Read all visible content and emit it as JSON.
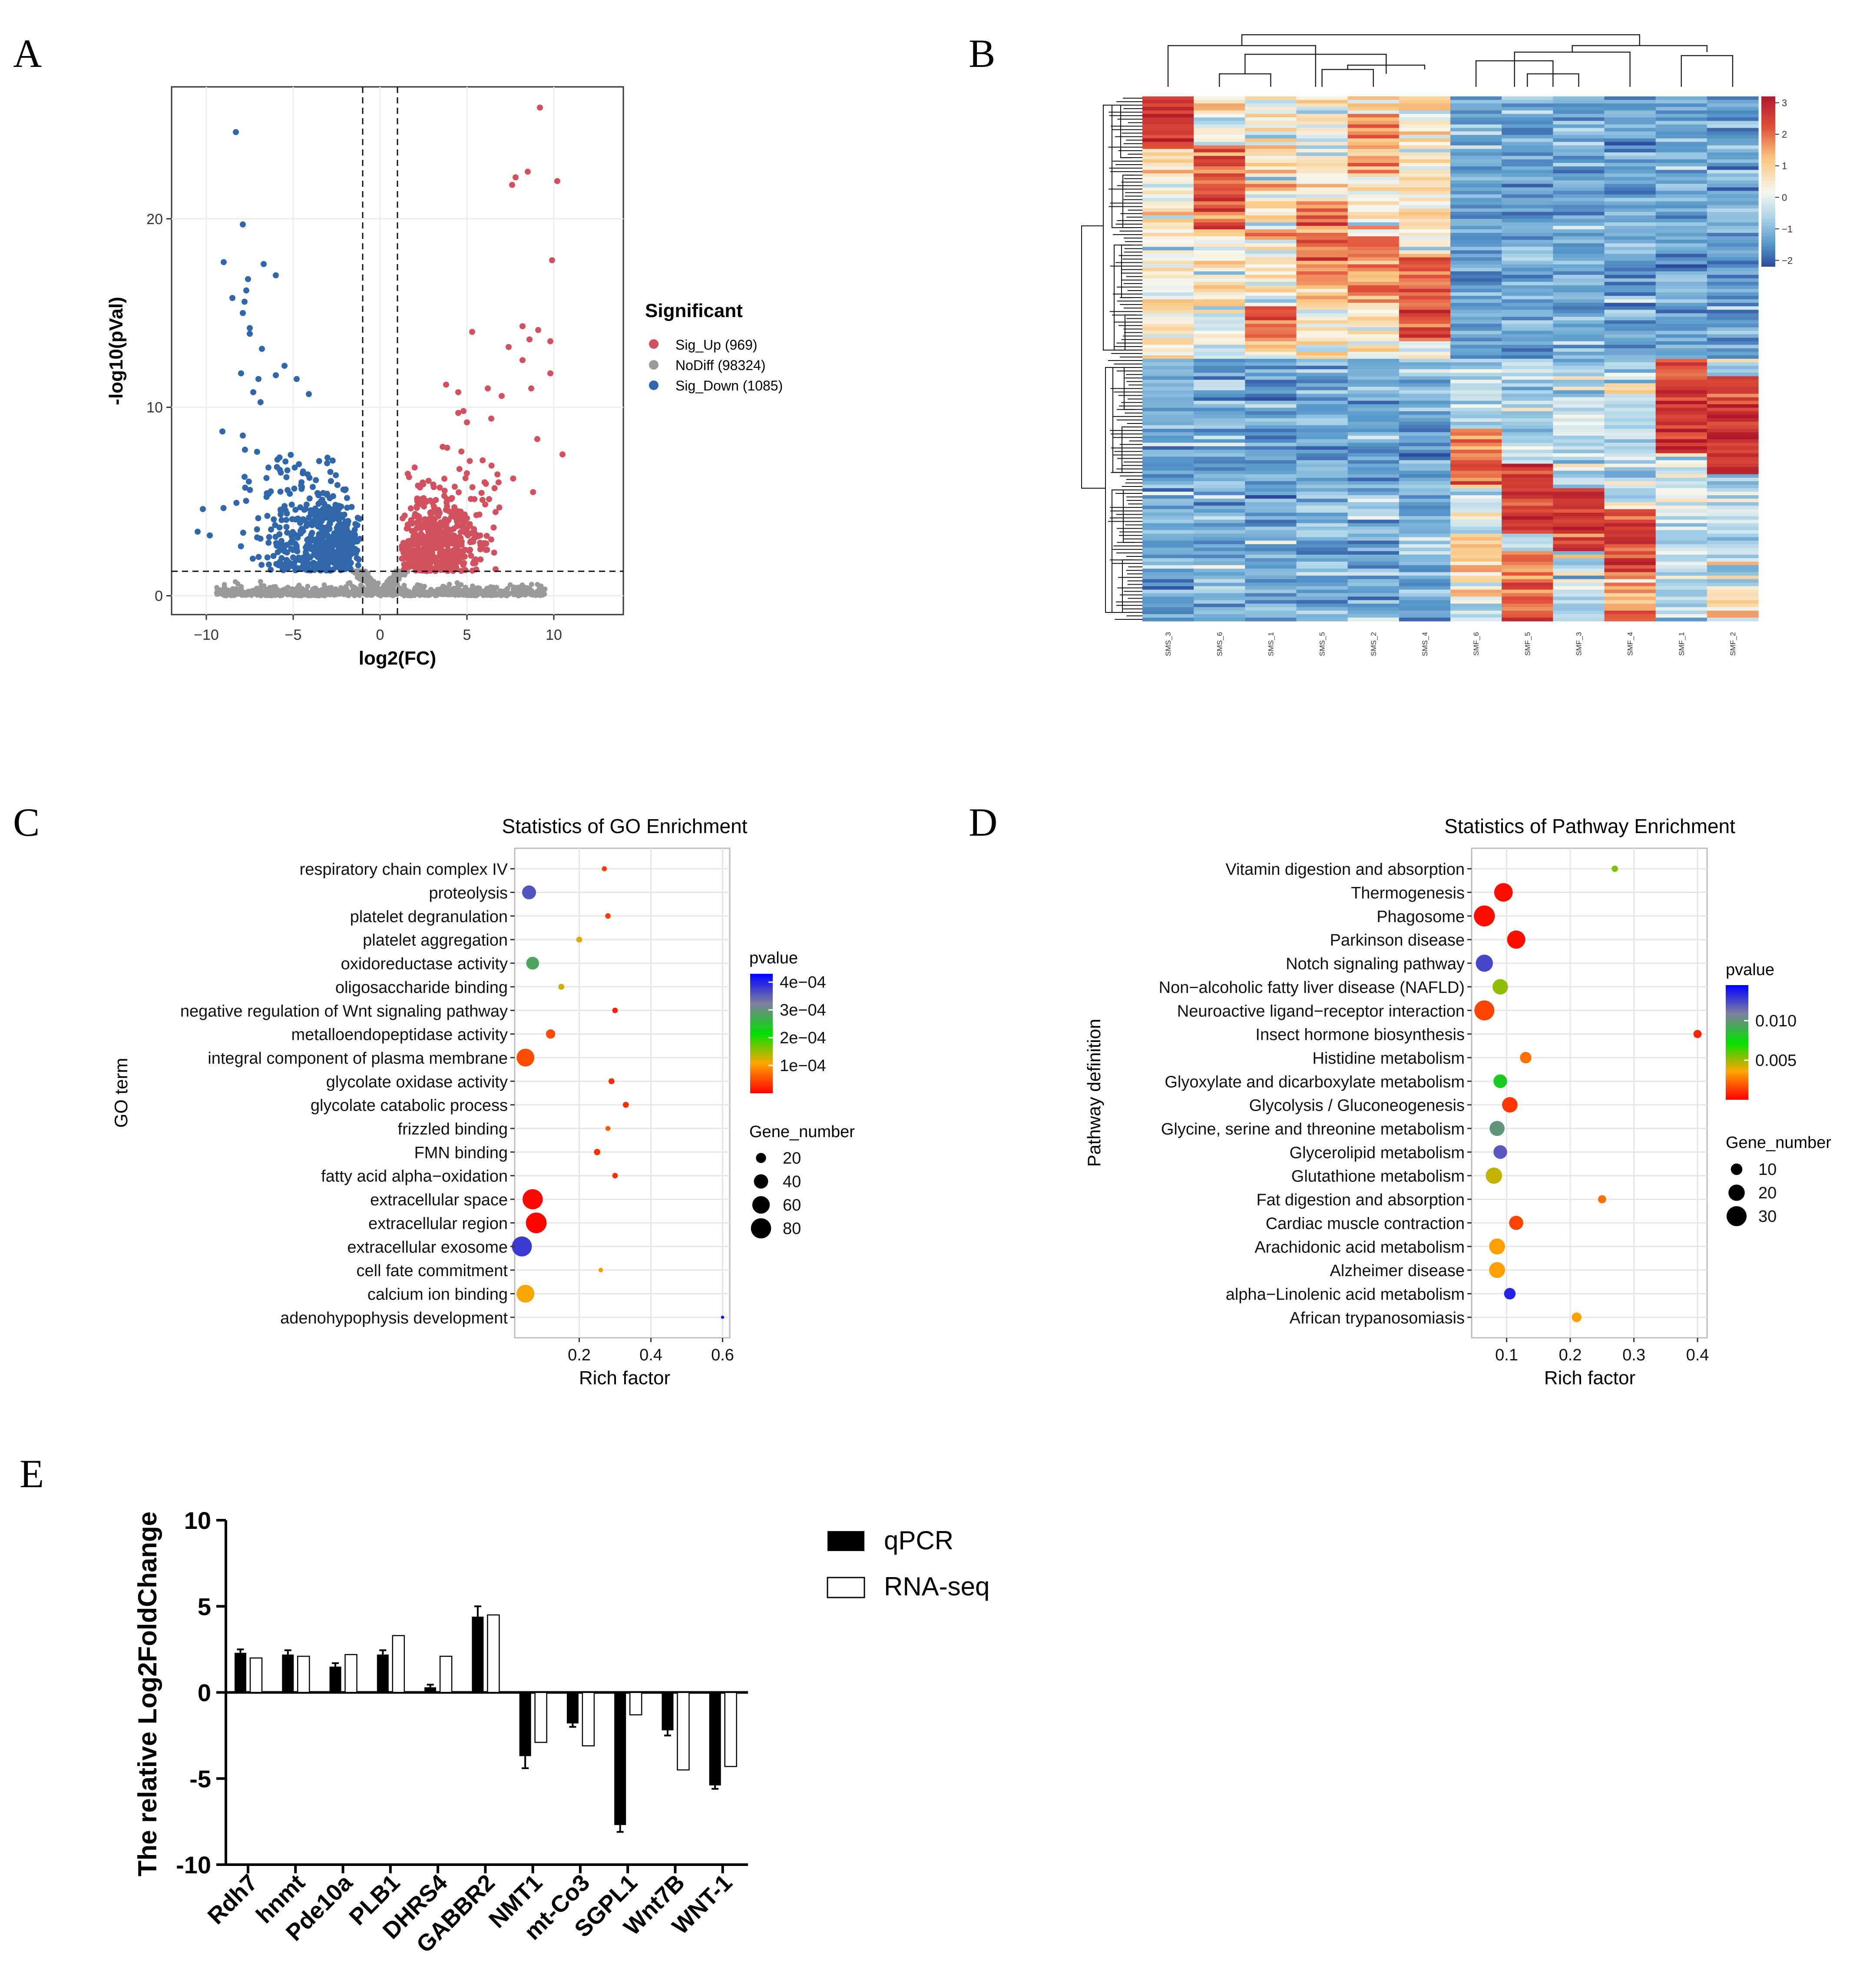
{
  "panels": {
    "a": "A",
    "b": "B",
    "c": "C",
    "d": "D",
    "e": "E"
  },
  "colors": {
    "up": "#d1515f",
    "nodiff": "#9a9a9a",
    "down": "#2f67aa",
    "panel_bg": "#ebebeb"
  },
  "chart_data": [
    {
      "id": "volcano",
      "type": "scatter",
      "xlabel": "log2(FC)",
      "ylabel": "-log10(pVal)",
      "xlim": [
        -12,
        14
      ],
      "ylim": [
        -1,
        27
      ],
      "xticks": [
        -10,
        -5,
        0,
        5,
        10
      ],
      "yticks": [
        0,
        10,
        20
      ],
      "xtick_labels": [
        "−10",
        "−5",
        "0",
        "5",
        "10"
      ],
      "ytick_labels": [
        "0",
        "10",
        "20"
      ],
      "thresholds": {
        "log2fc": [
          -1,
          1
        ],
        "neglog10p": 1.3
      },
      "legend": {
        "title": "Significant",
        "items": [
          "Sig_Up (969)",
          "NoDiff (98324)",
          "Sig_Down (1085)"
        ]
      },
      "highlight_points": {
        "up": [
          [
            9.2,
            25.9
          ],
          [
            8.5,
            22.5
          ],
          [
            10.2,
            22.0
          ],
          [
            7.6,
            21.8
          ],
          [
            7.8,
            22.2
          ],
          [
            9.9,
            17.8
          ],
          [
            8.2,
            14.3
          ],
          [
            9.1,
            14.1
          ],
          [
            7.4,
            13.2
          ],
          [
            9.8,
            13.5
          ],
          [
            8.6,
            13.6
          ],
          [
            5.3,
            14.0
          ],
          [
            8.2,
            12.5
          ],
          [
            9.8,
            11.8
          ],
          [
            10.5,
            7.5
          ],
          [
            3.8,
            11.2
          ],
          [
            6.2,
            11.0
          ],
          [
            4.5,
            10.8
          ],
          [
            8.7,
            11.0
          ],
          [
            7.0,
            10.6
          ],
          [
            4.8,
            9.8
          ],
          [
            4.5,
            9.7
          ],
          [
            6.4,
            9.4
          ],
          [
            5.0,
            9.2
          ]
        ],
        "down": [
          [
            -8.3,
            24.6
          ],
          [
            -7.9,
            19.7
          ],
          [
            -9.0,
            17.7
          ],
          [
            -6.7,
            17.6
          ],
          [
            -6.0,
            17.0
          ],
          [
            -7.6,
            16.8
          ],
          [
            -7.7,
            16.2
          ],
          [
            -8.5,
            15.8
          ],
          [
            -7.9,
            15.0
          ],
          [
            -7.8,
            15.6
          ],
          [
            -7.5,
            14.2
          ],
          [
            -7.5,
            13.9
          ],
          [
            -6.8,
            13.1
          ],
          [
            -5.5,
            12.2
          ],
          [
            -8.0,
            11.8
          ],
          [
            -7.0,
            11.5
          ],
          [
            -6.0,
            11.7
          ],
          [
            -4.8,
            11.5
          ],
          [
            -4.1,
            10.7
          ],
          [
            -7.3,
            10.8
          ],
          [
            -10.2,
            4.6
          ],
          [
            -10.5,
            3.4
          ],
          [
            -9.8,
            3.2
          ],
          [
            -7.9,
            8.5
          ]
        ]
      },
      "seed": 17
    },
    {
      "id": "heatmap",
      "type": "heatmap",
      "columns": [
        "SMS_3",
        "SMS_6",
        "SMS_1",
        "SMS_5",
        "SMS_2",
        "SMS_4",
        "SMF_6",
        "SMF_5",
        "SMF_3",
        "SMF_4",
        "SMF_1",
        "SMF_2"
      ],
      "colorbar_ticks": [
        3,
        2,
        1,
        0,
        -1,
        -2
      ],
      "colorbar_labels": [
        "3",
        "2",
        "1",
        "0",
        "−1",
        "−2"
      ],
      "vmin": -2.2,
      "vmax": 3.2,
      "seed": 29
    },
    {
      "id": "go",
      "type": "scatter",
      "title": "Statistics of GO Enrichment",
      "xlabel": "Rich factor",
      "ylabel": "GO term",
      "xlim": [
        0.02,
        0.62
      ],
      "xticks": [
        0.2,
        0.4,
        0.6
      ],
      "xtick_labels": [
        "0.2",
        "0.4",
        "0.6"
      ],
      "color_legend": {
        "title": "pvalue",
        "labels": [
          "4e−04",
          "3e−04",
          "2e−04",
          "1e−04"
        ],
        "values": [
          0.0004,
          0.0003,
          0.0002,
          0.0001
        ],
        "range": [
          0,
          0.00043
        ]
      },
      "size_legend": {
        "title": "Gene_number",
        "labels": [
          "20",
          "40",
          "60",
          "80"
        ],
        "values": [
          20,
          40,
          60,
          80
        ]
      },
      "terms": [
        {
          "label": "respiratory chain complex IV",
          "x": 0.27,
          "pvalue": 4e-05,
          "genes": 5
        },
        {
          "label": "proteolysis",
          "x": 0.06,
          "pvalue": 0.00036,
          "genes": 38
        },
        {
          "label": "platelet degranulation",
          "x": 0.28,
          "pvalue": 4e-05,
          "genes": 6
        },
        {
          "label": "platelet aggregation",
          "x": 0.2,
          "pvalue": 0.00012,
          "genes": 7
        },
        {
          "label": "oxidoreductase activity",
          "x": 0.07,
          "pvalue": 0.00028,
          "genes": 32
        },
        {
          "label": "oligosaccharide binding",
          "x": 0.15,
          "pvalue": 0.00013,
          "genes": 7
        },
        {
          "label": "negative regulation of Wnt signaling pathway",
          "x": 0.3,
          "pvalue": 2e-05,
          "genes": 6
        },
        {
          "label": "metalloendopeptidase activity",
          "x": 0.12,
          "pvalue": 5e-05,
          "genes": 17
        },
        {
          "label": "integral component of plasma membrane",
          "x": 0.05,
          "pvalue": 5e-05,
          "genes": 62
        },
        {
          "label": "glycolate oxidase activity",
          "x": 0.29,
          "pvalue": 3e-05,
          "genes": 7
        },
        {
          "label": "glycolate catabolic process",
          "x": 0.33,
          "pvalue": 3e-05,
          "genes": 7
        },
        {
          "label": "frizzled binding",
          "x": 0.28,
          "pvalue": 6e-05,
          "genes": 5
        },
        {
          "label": "FMN binding",
          "x": 0.25,
          "pvalue": 3e-05,
          "genes": 8
        },
        {
          "label": "fatty acid alpha−oxidation",
          "x": 0.3,
          "pvalue": 3e-05,
          "genes": 6
        },
        {
          "label": "extracellular space",
          "x": 0.07,
          "pvalue": 5e-06,
          "genes": 80
        },
        {
          "label": "extracellular region",
          "x": 0.08,
          "pvalue": 3e-06,
          "genes": 84
        },
        {
          "label": "extracellular exosome",
          "x": 0.04,
          "pvalue": 0.00038,
          "genes": 78
        },
        {
          "label": "cell fate commitment",
          "x": 0.26,
          "pvalue": 0.0001,
          "genes": 4
        },
        {
          "label": "calcium ion binding",
          "x": 0.05,
          "pvalue": 0.00011,
          "genes": 62
        },
        {
          "label": "adenohypophysis development",
          "x": 0.6,
          "pvalue": 0.00042,
          "genes": 2
        }
      ]
    },
    {
      "id": "pathway",
      "type": "scatter",
      "title": "Statistics of Pathway Enrichment",
      "xlabel": "Rich factor",
      "ylabel": "Pathway definition",
      "xlim": [
        0.045,
        0.415
      ],
      "xticks": [
        0.1,
        0.2,
        0.3,
        0.4
      ],
      "xtick_labels": [
        "0.1",
        "0.2",
        "0.3",
        "0.4"
      ],
      "color_legend": {
        "title": "pvalue",
        "labels": [
          "0.010",
          "0.005"
        ],
        "values": [
          0.01,
          0.005
        ],
        "range": [
          0,
          0.0145
        ]
      },
      "size_legend": {
        "title": "Gene_number",
        "labels": [
          "10",
          "20",
          "30"
        ],
        "values": [
          10,
          20,
          30
        ]
      },
      "terms": [
        {
          "label": "Vitamin digestion and absorption",
          "x": 0.27,
          "pvalue": 0.0055,
          "genes": 3
        },
        {
          "label": "Thermogenesis",
          "x": 0.095,
          "pvalue": 0.0003,
          "genes": 26
        },
        {
          "label": "Phagosome",
          "x": 0.065,
          "pvalue": 0.0003,
          "genes": 33
        },
        {
          "label": "Parkinson disease",
          "x": 0.115,
          "pvalue": 0.0003,
          "genes": 25
        },
        {
          "label": "Notch signaling pathway",
          "x": 0.065,
          "pvalue": 0.0125,
          "genes": 22
        },
        {
          "label": "Non−alcoholic fatty liver disease (NAFLD)",
          "x": 0.09,
          "pvalue": 0.0052,
          "genes": 18
        },
        {
          "label": "Neuroactive ligand−receptor interaction",
          "x": 0.065,
          "pvalue": 0.0015,
          "genes": 30
        },
        {
          "label": "Insect hormone biosynthesis",
          "x": 0.4,
          "pvalue": 0.0008,
          "genes": 5
        },
        {
          "label": "Histidine metabolism",
          "x": 0.13,
          "pvalue": 0.0025,
          "genes": 10
        },
        {
          "label": "Glyoxylate and dicarboxylate metabolism",
          "x": 0.09,
          "pvalue": 0.008,
          "genes": 14
        },
        {
          "label": "Glycolysis / Gluconeogenesis",
          "x": 0.105,
          "pvalue": 0.0012,
          "genes": 18
        },
        {
          "label": "Glycine, serine and threonine metabolism",
          "x": 0.085,
          "pvalue": 0.01,
          "genes": 17
        },
        {
          "label": "Glycerolipid metabolism",
          "x": 0.09,
          "pvalue": 0.012,
          "genes": 14
        },
        {
          "label": "Glutathione metabolism",
          "x": 0.08,
          "pvalue": 0.0045,
          "genes": 20
        },
        {
          "label": "Fat digestion and absorption",
          "x": 0.25,
          "pvalue": 0.0025,
          "genes": 5
        },
        {
          "label": "Cardiac muscle contraction",
          "x": 0.115,
          "pvalue": 0.0015,
          "genes": 15
        },
        {
          "label": "Arachidonic acid metabolism",
          "x": 0.085,
          "pvalue": 0.0035,
          "genes": 19
        },
        {
          "label": "Alzheimer disease",
          "x": 0.085,
          "pvalue": 0.0035,
          "genes": 19
        },
        {
          "label": "alpha−Linolenic acid metabolism",
          "x": 0.105,
          "pvalue": 0.0135,
          "genes": 10
        },
        {
          "label": "African trypanosomiasis",
          "x": 0.21,
          "pvalue": 0.0035,
          "genes": 7
        }
      ]
    },
    {
      "id": "qpcr",
      "type": "bar",
      "ylabel": "The relative Log2FoldChange",
      "ylim": [
        -10,
        10
      ],
      "yticks": [
        10,
        5,
        0,
        -5,
        -10
      ],
      "ytick_labels": [
        "10",
        "5",
        "0",
        "-5",
        "-10"
      ],
      "categories": [
        "Rdh7",
        "hnmt",
        "Pde10a",
        "PLB1",
        "DHRS4",
        "GABBR2",
        "NMT1",
        "mt-Co3",
        "SGPL1",
        "Wnt7B",
        "WNT-1"
      ],
      "series": [
        {
          "name": "qPCR",
          "values": [
            2.3,
            2.2,
            1.5,
            2.2,
            0.3,
            4.4,
            -3.7,
            -1.8,
            -7.7,
            -2.2,
            -5.4
          ],
          "errors": [
            0.2,
            0.25,
            0.2,
            0.25,
            0.15,
            0.6,
            0.7,
            0.2,
            0.4,
            0.3,
            0.2
          ]
        },
        {
          "name": "RNA-seq",
          "values": [
            2.0,
            2.1,
            2.2,
            3.3,
            2.1,
            4.5,
            -2.9,
            -3.1,
            -1.3,
            -4.5,
            -4.3
          ]
        }
      ]
    }
  ]
}
